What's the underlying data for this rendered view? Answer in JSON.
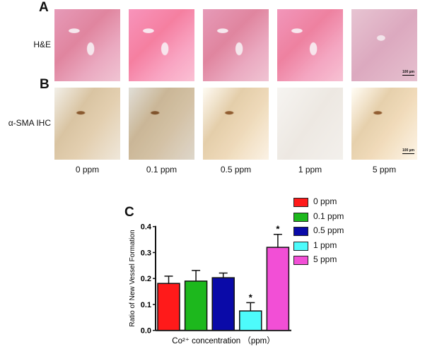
{
  "panels": {
    "a_label": "A",
    "b_label": "B",
    "c_label": "C",
    "row_a_label": "H&E",
    "row_b_label": "α-SMA IHC",
    "scale_bar": "100 µm",
    "concentrations": [
      "0 ppm",
      "0.1 ppm",
      "0.5 ppm",
      "1 ppm",
      "5 ppm"
    ]
  },
  "chart_data": {
    "type": "bar",
    "categories": [
      "0 ppm",
      "0.1 ppm",
      "0.5 ppm",
      "1 ppm",
      "5 ppm"
    ],
    "values": [
      0.181,
      0.19,
      0.203,
      0.075,
      0.32
    ],
    "error_upper": [
      0.209,
      0.231,
      0.221,
      0.107,
      0.37
    ],
    "significance": [
      "",
      "",
      "",
      "*",
      "*"
    ],
    "colors": [
      "#ff1a1a",
      "#1db81d",
      "#0a0aa8",
      "#4dfbfb",
      "#f24fd6"
    ],
    "xlabel": "Co²⁺ concentration （ppm）",
    "ylabel": "Ratio of New Vessel Formation",
    "ylim": [
      0,
      0.4
    ],
    "yticks": [
      "0.0",
      "0.1",
      "0.2",
      "0.3",
      "0.4"
    ],
    "legend": [
      "0 ppm",
      "0.1 ppm",
      "0.5 ppm",
      "1 ppm",
      "5 ppm"
    ],
    "legend_position": "top-right",
    "grid": false
  }
}
